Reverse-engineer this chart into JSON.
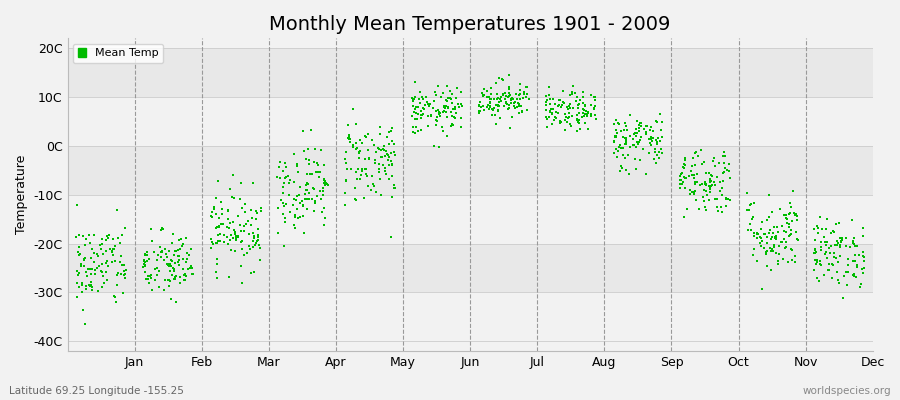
{
  "title": "Monthly Mean Temperatures 1901 - 2009",
  "ylabel": "Temperature",
  "xlabel_labels": [
    "Jan",
    "Feb",
    "Mar",
    "Apr",
    "May",
    "Jun",
    "Jul",
    "Aug",
    "Sep",
    "Oct",
    "Nov",
    "Dec"
  ],
  "ytick_labels": [
    "20C",
    "10C",
    "0C",
    "-10C",
    "-20C",
    "-30C",
    "-40C"
  ],
  "ytick_values": [
    20,
    10,
    0,
    -10,
    -20,
    -30,
    -40
  ],
  "ylim": [
    -42,
    22
  ],
  "dot_color": "#00bb00",
  "background_color": "#f2f2f2",
  "plot_bg_color": "#f2f2f2",
  "band_color_light": "#f2f2f2",
  "band_color_dark": "#e8e8e8",
  "grid_color": "#cccccc",
  "dashed_line_color": "#999999",
  "title_fontsize": 14,
  "axis_fontsize": 9,
  "legend_label": "Mean Temp",
  "footer_left": "Latitude 69.25 Longitude -155.25",
  "footer_right": "worldspecies.org",
  "monthly_means": [
    -24.5,
    -24.5,
    -17.0,
    -8.5,
    -3.0,
    7.0,
    9.5,
    7.0,
    1.0,
    -7.0,
    -18.0,
    -22.0
  ],
  "monthly_stds": [
    4.5,
    3.5,
    4.0,
    4.5,
    4.5,
    2.5,
    2.0,
    2.0,
    3.0,
    3.5,
    4.0,
    3.5
  ],
  "n_years": 109
}
